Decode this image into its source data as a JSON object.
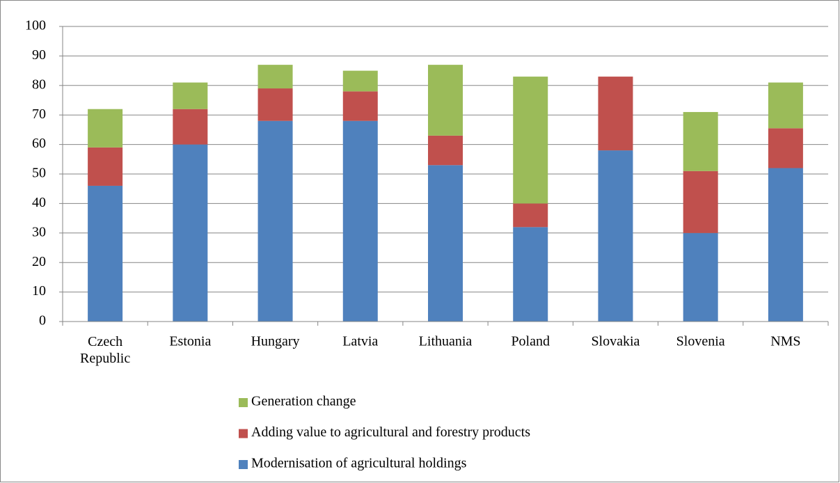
{
  "chart_data": {
    "type": "stacked-bar",
    "categories": [
      "Czech Republic",
      "Estonia",
      "Hungary",
      "Latvia",
      "Lithuania",
      "Poland",
      "Slovakia",
      "Slovenia",
      "NMS"
    ],
    "series": [
      {
        "name": "Modernisation of agricultural holdings",
        "color": "#4f81bd",
        "values": [
          46,
          60,
          68,
          68,
          53,
          32,
          58,
          30,
          52
        ]
      },
      {
        "name": "Adding value to agricultural and forestry products",
        "color": "#c0504d",
        "values": [
          13,
          12,
          11,
          10,
          10,
          8,
          25,
          21,
          13.5
        ]
      },
      {
        "name": "Generation change",
        "color": "#9bbb59",
        "values": [
          13,
          9,
          8,
          7,
          24,
          43,
          0,
          20,
          15.5
        ]
      }
    ],
    "ylim": [
      0,
      100
    ],
    "yticks": [
      0,
      10,
      20,
      30,
      40,
      50,
      60,
      70,
      80,
      90,
      100
    ],
    "grid": true
  }
}
